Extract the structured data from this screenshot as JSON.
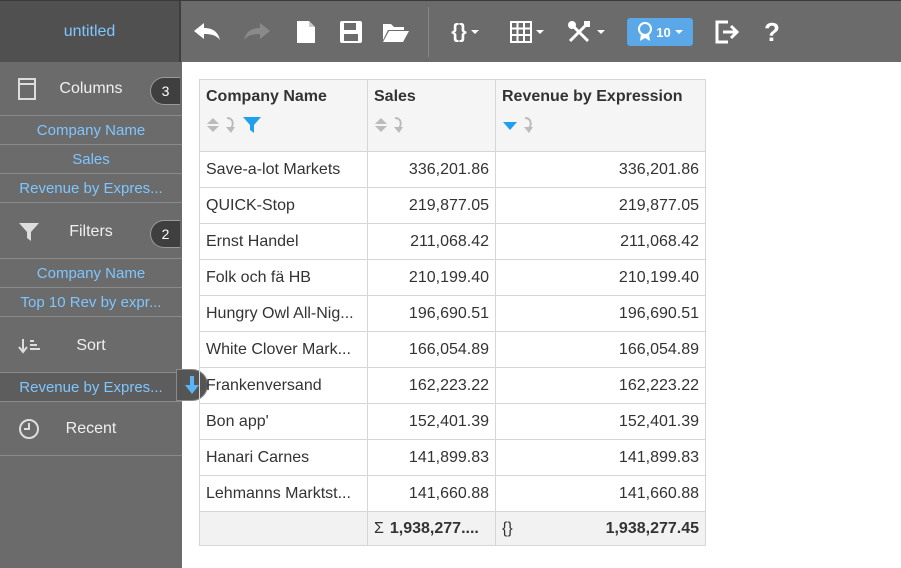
{
  "app": {
    "title": "untitled"
  },
  "toolbar": {
    "badge_label": "10",
    "help_label": "?",
    "braces_label": "{}"
  },
  "sidebar": {
    "columns": {
      "label": "Columns",
      "count": "3",
      "items": [
        "Company Name",
        "Sales",
        "Revenue by Expres..."
      ]
    },
    "filters": {
      "label": "Filters",
      "count": "2",
      "items": [
        "Company Name",
        "Top 10 Rev by expr..."
      ]
    },
    "sort": {
      "label": "Sort",
      "items": [
        "Revenue by Expres..."
      ]
    },
    "recent": {
      "label": "Recent"
    }
  },
  "table": {
    "headers": [
      "Company Name",
      "Sales",
      "Revenue by Expression"
    ],
    "rows": [
      [
        "Save-a-lot Markets",
        "336,201.86",
        "336,201.86"
      ],
      [
        "QUICK-Stop",
        "219,877.05",
        "219,877.05"
      ],
      [
        "Ernst Handel",
        "211,068.42",
        "211,068.42"
      ],
      [
        "Folk och fä HB",
        "210,199.40",
        "210,199.40"
      ],
      [
        "Hungry Owl All-Nig...",
        "196,690.51",
        "196,690.51"
      ],
      [
        "White Clover Mark...",
        "166,054.89",
        "166,054.89"
      ],
      [
        "Frankenversand",
        "162,223.22",
        "162,223.22"
      ],
      [
        "Bon app'",
        "152,401.39",
        "152,401.39"
      ],
      [
        "Hanari Carnes",
        "141,899.83",
        "141,899.83"
      ],
      [
        "Lehmanns Marktst...",
        "141,660.88",
        "141,660.88"
      ]
    ],
    "totals": {
      "sigma": "Σ",
      "sales": "1,938,277....",
      "braces": "{}",
      "revenue": "1,938,277.45"
    }
  }
}
